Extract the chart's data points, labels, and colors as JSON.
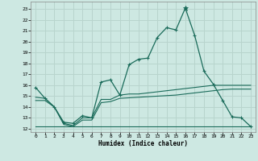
{
  "xlabel": "Humidex (Indice chaleur)",
  "background_color": "#cde8e2",
  "grid_color": "#b8d4cd",
  "line_color": "#1a6b5a",
  "x_ticks": [
    0,
    1,
    2,
    3,
    4,
    5,
    6,
    7,
    8,
    9,
    10,
    11,
    12,
    13,
    14,
    15,
    16,
    17,
    18,
    19,
    20,
    21,
    22,
    23
  ],
  "y_ticks": [
    12,
    13,
    14,
    15,
    16,
    17,
    18,
    19,
    20,
    21,
    22,
    23
  ],
  "ylim": [
    11.7,
    23.7
  ],
  "xlim": [
    -0.5,
    23.5
  ],
  "main_series_y": [
    15.8,
    14.8,
    14.0,
    12.6,
    12.5,
    13.2,
    13.0,
    16.3,
    16.5,
    15.1,
    17.9,
    18.4,
    18.5,
    20.4,
    21.3,
    21.1,
    23.1,
    20.6,
    17.3,
    16.1,
    14.6,
    13.1,
    13.0,
    12.2
  ],
  "line2_y": [
    14.9,
    14.8,
    14.0,
    12.5,
    12.3,
    13.0,
    13.0,
    14.7,
    14.7,
    15.1,
    15.2,
    15.2,
    15.3,
    15.4,
    15.5,
    15.6,
    15.7,
    15.8,
    15.9,
    16.0,
    16.0,
    16.0,
    16.0,
    16.0
  ],
  "line3_y": [
    14.6,
    14.6,
    14.0,
    12.4,
    12.2,
    12.8,
    12.8,
    14.4,
    14.5,
    14.8,
    14.85,
    14.9,
    14.95,
    15.0,
    15.05,
    15.1,
    15.2,
    15.3,
    15.4,
    15.5,
    15.6,
    15.65,
    15.65,
    15.65
  ],
  "line4_y": [
    12.2,
    12.2,
    12.2,
    12.2,
    12.2,
    12.2,
    12.2,
    12.2,
    12.2,
    12.2,
    12.2,
    12.2,
    12.2,
    12.2,
    12.2,
    12.2,
    12.2,
    12.2,
    12.2,
    12.2,
    12.2,
    12.2,
    12.2,
    12.2
  ]
}
